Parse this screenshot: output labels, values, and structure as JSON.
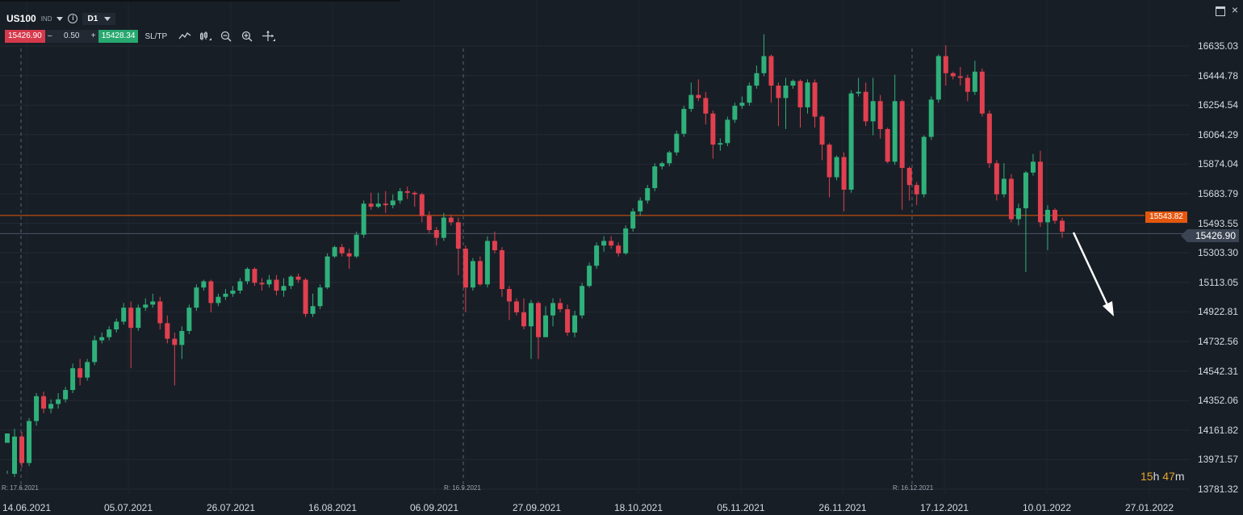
{
  "toolbar": {
    "symbol": "US100",
    "market": "IND",
    "timeframe": "D1",
    "sell_price": "15426.90",
    "minus": "–",
    "volume": "0.50",
    "plus": "+",
    "buy_price": "15428.34",
    "sltp_label": "SL/TP",
    "colors": {
      "sell": "#d6394b",
      "buy": "#27a86f"
    },
    "tools": [
      "line-chart-icon",
      "candle-settings-icon",
      "zoom-out-icon",
      "zoom-in-icon",
      "crosshair-icon"
    ]
  },
  "window_controls": {
    "close": "×"
  },
  "price_axis": {
    "labels": [
      "16635.03",
      "16444.78",
      "16254.54",
      "16064.29",
      "15874.04",
      "15683.79",
      "15493.55",
      "15303.30",
      "15113.05",
      "14922.81",
      "14732.56",
      "14542.31",
      "14352.06",
      "14161.82",
      "13971.57",
      "13781.32"
    ]
  },
  "date_axis": {
    "labels": [
      "14.06.2021",
      "05.07.2021",
      "26.07.2021",
      "16.08.2021",
      "06.09.2021",
      "27.09.2021",
      "18.10.2021",
      "05.11.2021",
      "26.11.2021",
      "17.12.2021",
      "10.01.2022",
      "27.01.2022"
    ]
  },
  "rollover_labels": [
    "R: 17.6.2021",
    "R: 16.9.2021",
    "R: 16.12.2021"
  ],
  "horizontal_line": {
    "value": "15543.82",
    "color": "#e4570e"
  },
  "current_price": "15426.90",
  "countdown": {
    "hours": "15",
    "h": "h",
    "minutes": "47",
    "m": "m"
  },
  "chart_data": {
    "type": "candlestick",
    "timeframe": "D1",
    "colors": {
      "up": "#2fb07a",
      "down": "#e0404f"
    },
    "ylim": [
      13781.32,
      16635.03
    ],
    "candles": [
      [
        14080,
        14140,
        13900,
        13880
      ],
      [
        13880,
        14120,
        14170,
        13860
      ],
      [
        14120,
        13950,
        14150,
        13920
      ],
      [
        13950,
        14220,
        14240,
        13930
      ],
      [
        14220,
        14380,
        14400,
        14190
      ],
      [
        14380,
        14300,
        14410,
        14270
      ],
      [
        14300,
        14330,
        14360,
        14270
      ],
      [
        14330,
        14360,
        14400,
        14300
      ],
      [
        14360,
        14420,
        14440,
        14340
      ],
      [
        14420,
        14560,
        14590,
        14400
      ],
      [
        14560,
        14500,
        14620,
        14450
      ],
      [
        14500,
        14600,
        14620,
        14480
      ],
      [
        14600,
        14740,
        14770,
        14580
      ],
      [
        14740,
        14760,
        14790,
        14720
      ],
      [
        14760,
        14810,
        14830,
        14740
      ],
      [
        14810,
        14860,
        14880,
        14790
      ],
      [
        14860,
        14950,
        14980,
        14840
      ],
      [
        14950,
        14820,
        14990,
        14560
      ],
      [
        14820,
        14950,
        14970,
        14800
      ],
      [
        14950,
        14970,
        15010,
        14930
      ],
      [
        14970,
        14990,
        15040,
        14950
      ],
      [
        14990,
        14850,
        15020,
        14810
      ],
      [
        14850,
        14750,
        14900,
        14720
      ],
      [
        14750,
        14710,
        14790,
        14450
      ],
      [
        14710,
        14800,
        14830,
        14620
      ],
      [
        14800,
        14950,
        14970,
        14780
      ],
      [
        14950,
        15080,
        15100,
        14930
      ],
      [
        15080,
        15120,
        15130,
        15060
      ],
      [
        15120,
        14980,
        15130,
        14920
      ],
      [
        14980,
        15020,
        15040,
        14960
      ],
      [
        15020,
        15040,
        15070,
        15000
      ],
      [
        15040,
        15060,
        15090,
        15020
      ],
      [
        15060,
        15120,
        15140,
        15040
      ],
      [
        15120,
        15200,
        15210,
        15100
      ],
      [
        15200,
        15110,
        15210,
        15090
      ],
      [
        15110,
        15100,
        15140,
        15060
      ],
      [
        15100,
        15130,
        15160,
        15080
      ],
      [
        15130,
        15060,
        15160,
        15030
      ],
      [
        15060,
        15090,
        15140,
        15020
      ],
      [
        15090,
        15150,
        15160,
        15070
      ],
      [
        15150,
        15130,
        15170,
        15110
      ],
      [
        15130,
        14910,
        15140,
        14890
      ],
      [
        14910,
        14960,
        15040,
        14890
      ],
      [
        14960,
        15080,
        15100,
        14940
      ],
      [
        15080,
        15280,
        15300,
        15070
      ],
      [
        15280,
        15340,
        15350,
        15270
      ],
      [
        15340,
        15300,
        15360,
        15280
      ],
      [
        15300,
        15280,
        15330,
        15200
      ],
      [
        15280,
        15420,
        15440,
        15270
      ],
      [
        15420,
        15620,
        15640,
        15400
      ],
      [
        15620,
        15600,
        15690,
        15580
      ],
      [
        15600,
        15620,
        15690,
        15590
      ],
      [
        15620,
        15610,
        15700,
        15560
      ],
      [
        15610,
        15640,
        15680,
        15590
      ],
      [
        15640,
        15700,
        15720,
        15620
      ],
      [
        15700,
        15690,
        15730,
        15650
      ],
      [
        15690,
        15680,
        15700,
        15600
      ],
      [
        15680,
        15540,
        15690,
        15500
      ],
      [
        15540,
        15450,
        15570,
        15430
      ],
      [
        15450,
        15400,
        15470,
        15350
      ],
      [
        15400,
        15530,
        15560,
        15380
      ],
      [
        15530,
        15500,
        15550,
        15480
      ],
      [
        15500,
        15330,
        15530,
        15160
      ],
      [
        15330,
        15080,
        15350,
        14920
      ],
      [
        15080,
        15250,
        15270,
        15060
      ],
      [
        15250,
        15100,
        15280,
        15090
      ],
      [
        15100,
        15380,
        15410,
        15080
      ],
      [
        15380,
        15320,
        15440,
        15300
      ],
      [
        15320,
        15070,
        15340,
        15020
      ],
      [
        15070,
        14990,
        15090,
        14870
      ],
      [
        14990,
        14920,
        15010,
        14900
      ],
      [
        14920,
        14830,
        15010,
        14810
      ],
      [
        14830,
        14980,
        15000,
        14620
      ],
      [
        14980,
        14760,
        14990,
        14620
      ],
      [
        14760,
        14900,
        14960,
        14770
      ],
      [
        14900,
        14980,
        15010,
        14830
      ],
      [
        14980,
        14940,
        15010,
        14920
      ],
      [
        14940,
        14790,
        14970,
        14770
      ],
      [
        14790,
        14900,
        14930,
        14760
      ],
      [
        14900,
        15090,
        15110,
        14880
      ],
      [
        15090,
        15220,
        15240,
        15080
      ],
      [
        15220,
        15350,
        15370,
        15200
      ],
      [
        15350,
        15380,
        15410,
        15310
      ],
      [
        15380,
        15350,
        15410,
        15330
      ],
      [
        15350,
        15300,
        15370,
        15280
      ],
      [
        15300,
        15460,
        15480,
        15290
      ],
      [
        15460,
        15570,
        15590,
        15440
      ],
      [
        15570,
        15640,
        15660,
        15540
      ],
      [
        15640,
        15720,
        15740,
        15620
      ],
      [
        15720,
        15860,
        15880,
        15700
      ],
      [
        15860,
        15880,
        15890,
        15840
      ],
      [
        15880,
        15950,
        15960,
        15860
      ],
      [
        15950,
        16070,
        16090,
        15930
      ],
      [
        16070,
        16230,
        16250,
        16050
      ],
      [
        16230,
        16320,
        16400,
        16210
      ],
      [
        16320,
        16300,
        16420,
        16280
      ],
      [
        16300,
        16200,
        16340,
        16130
      ],
      [
        16200,
        16000,
        16220,
        15910
      ],
      [
        16000,
        16010,
        16040,
        15960
      ],
      [
        16010,
        16160,
        16180,
        15990
      ],
      [
        16160,
        16250,
        16270,
        16140
      ],
      [
        16250,
        16270,
        16310,
        16230
      ],
      [
        16270,
        16380,
        16400,
        16250
      ],
      [
        16380,
        16460,
        16510,
        16360
      ],
      [
        16460,
        16570,
        16710,
        16440
      ],
      [
        16570,
        16380,
        16580,
        16270
      ],
      [
        16380,
        16300,
        16400,
        16120
      ],
      [
        16300,
        16380,
        16430,
        16100
      ],
      [
        16380,
        16410,
        16420,
        16360
      ],
      [
        16410,
        16240,
        16420,
        16110
      ],
      [
        16240,
        16400,
        16420,
        16200
      ],
      [
        16400,
        16180,
        16420,
        16110
      ],
      [
        16180,
        16000,
        16190,
        15900
      ],
      [
        16000,
        15790,
        16010,
        15660
      ],
      [
        15790,
        15920,
        15930,
        15770
      ],
      [
        15920,
        15710,
        15950,
        15570
      ],
      [
        15710,
        16330,
        16350,
        15690
      ],
      [
        16330,
        16340,
        16430,
        16310
      ],
      [
        16340,
        16150,
        16400,
        16120
      ],
      [
        16150,
        16280,
        16430,
        16060
      ],
      [
        16280,
        16100,
        16320,
        16040
      ],
      [
        16100,
        15890,
        16110,
        15880
      ],
      [
        15890,
        16280,
        16450,
        15870
      ],
      [
        16280,
        15850,
        16290,
        15580
      ],
      [
        15850,
        15740,
        15860,
        15640
      ],
      [
        15740,
        15680,
        15760,
        15610
      ],
      [
        15680,
        16050,
        16060,
        15660
      ],
      [
        16050,
        16290,
        16310,
        16030
      ],
      [
        16290,
        16570,
        16580,
        16270
      ],
      [
        16570,
        16460,
        16640,
        16380
      ],
      [
        16460,
        16440,
        16470,
        16420
      ],
      [
        16440,
        16430,
        16500,
        16380
      ],
      [
        16430,
        16340,
        16450,
        16280
      ],
      [
        16340,
        16470,
        16540,
        16320
      ],
      [
        16470,
        16200,
        16490,
        16180
      ],
      [
        16200,
        15880,
        16220,
        15850
      ],
      [
        15880,
        15680,
        15900,
        15640
      ],
      [
        15680,
        15780,
        15880,
        15660
      ],
      [
        15780,
        15520,
        15810,
        15500
      ],
      [
        15520,
        15590,
        15620,
        15480
      ],
      [
        15590,
        15820,
        15830,
        15180
      ],
      [
        15820,
        15890,
        15940,
        15800
      ],
      [
        15890,
        15500,
        15960,
        15470
      ],
      [
        15500,
        15580,
        15610,
        15320
      ],
      [
        15580,
        15510,
        15590,
        15490
      ],
      [
        15510,
        15440,
        15530,
        15400
      ]
    ],
    "annotation": "arrow pointing down from latest candle"
  }
}
